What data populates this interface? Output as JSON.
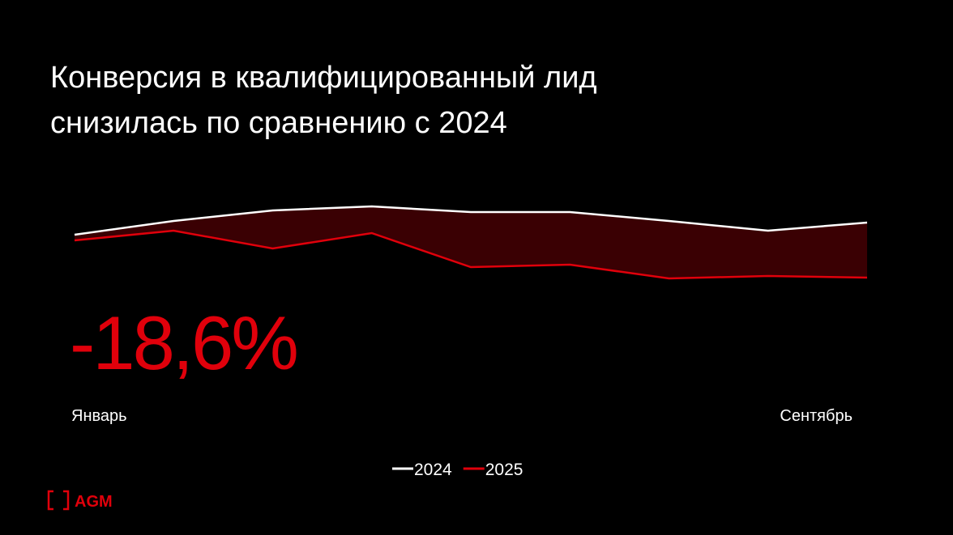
{
  "chart_data": {
    "type": "line",
    "title": "Конверсия в квалифицированный лид снизилась по сравнению с 2024",
    "annotation": "-18,6%",
    "categories": [
      "Январь",
      null,
      null,
      null,
      null,
      null,
      null,
      null,
      "Сентябрь"
    ],
    "series": [
      {
        "name": "2024",
        "color": "#ffffff",
        "values": [
          13.0,
          14.7,
          16.0,
          16.5,
          15.8,
          15.8,
          14.7,
          13.5,
          14.5
        ]
      },
      {
        "name": "2025",
        "color": "#e0000b",
        "values": [
          12.3,
          13.5,
          11.3,
          13.2,
          9.0,
          9.3,
          7.6,
          7.9,
          7.7
        ]
      }
    ],
    "fill_between_color": "#3a0003",
    "logo": "AGM"
  }
}
